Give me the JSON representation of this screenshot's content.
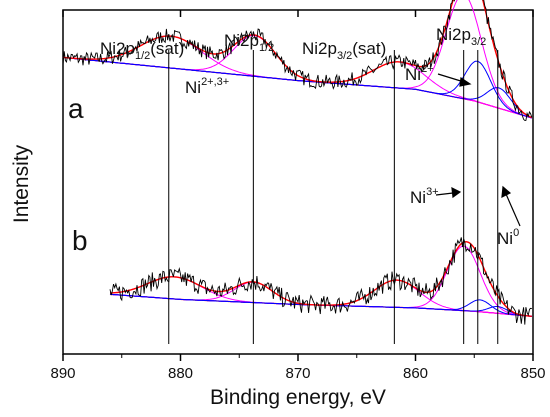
{
  "chart_data": {
    "type": "line",
    "xlabel": "Binding energy, eV",
    "ylabel": "Intensity",
    "xlim": [
      890,
      850
    ],
    "x_reversed": true,
    "xticks": [
      890,
      880,
      870,
      860,
      850
    ],
    "y_ticks_labeled": false,
    "panels": [
      "a",
      "b"
    ],
    "peak_reference_lines_eV": [
      881.0,
      873.8,
      861.8,
      855.9,
      854.7,
      853.0
    ],
    "peak_labels": [
      {
        "main": "Ni2p",
        "sub": "1/2",
        "suffix": "(sat)"
      },
      {
        "main": "Ni2p",
        "sub": "1/2",
        "suffix": ""
      },
      {
        "main": "Ni2p",
        "sub": "3/2",
        "suffix": "(sat)"
      },
      {
        "main": "Ni2p",
        "sub": "3/2",
        "suffix": ""
      }
    ],
    "species_labels": [
      {
        "main": "Ni",
        "sup": "2+,3+"
      },
      {
        "main": "Ni",
        "sup": "2+"
      },
      {
        "main": "Ni",
        "sup": "3+"
      },
      {
        "main": "Ni",
        "sup": "0"
      }
    ],
    "components": {
      "a": {
        "background": [
          [
            890,
            0.94
          ],
          [
            880,
            0.9
          ],
          [
            870,
            0.86
          ],
          [
            860,
            0.83
          ],
          [
            855,
            0.79
          ],
          [
            850,
            0.73
          ]
        ],
        "peaks": [
          {
            "center": 880.8,
            "height": 0.11,
            "width": 2.6,
            "color": "#ff00ff"
          },
          {
            "center": 873.7,
            "height": 0.14,
            "width": 1.8,
            "color": "#ff00ff"
          },
          {
            "center": 861.4,
            "height": 0.09,
            "width": 2.2,
            "color": "#ff00ff"
          },
          {
            "center": 855.9,
            "height": 0.36,
            "width": 1.5,
            "color": "#ff00ff"
          },
          {
            "center": 854.7,
            "height": 0.14,
            "width": 1.1,
            "color": "#0000ff"
          },
          {
            "center": 852.9,
            "height": 0.07,
            "width": 1.0,
            "color": "#0000ff"
          }
        ]
      },
      "b": {
        "background": [
          [
            886,
            0.21
          ],
          [
            880,
            0.18
          ],
          [
            870,
            0.15
          ],
          [
            860,
            0.13
          ],
          [
            855,
            0.11
          ],
          [
            850,
            0.08
          ]
        ],
        "peaks": [
          {
            "center": 880.5,
            "height": 0.13,
            "width": 2.3,
            "color": "#ff00ff"
          },
          {
            "center": 873.8,
            "height": 0.12,
            "width": 1.6,
            "color": "#ff00ff"
          },
          {
            "center": 861.6,
            "height": 0.16,
            "width": 1.9,
            "color": "#ff00ff"
          },
          {
            "center": 855.9,
            "height": 0.38,
            "width": 1.4,
            "color": "#ff00ff"
          },
          {
            "center": 854.5,
            "height": 0.07,
            "width": 0.9,
            "color": "#0000ff"
          },
          {
            "center": 853.0,
            "height": 0.04,
            "width": 0.8,
            "color": "#0000ff"
          }
        ]
      }
    },
    "colors": {
      "raw": "#000000",
      "envelope": "#ff0000",
      "background": "#ff0000",
      "satellite": "#ff00ff",
      "component": "#0000ff",
      "minor": "#808000"
    }
  }
}
